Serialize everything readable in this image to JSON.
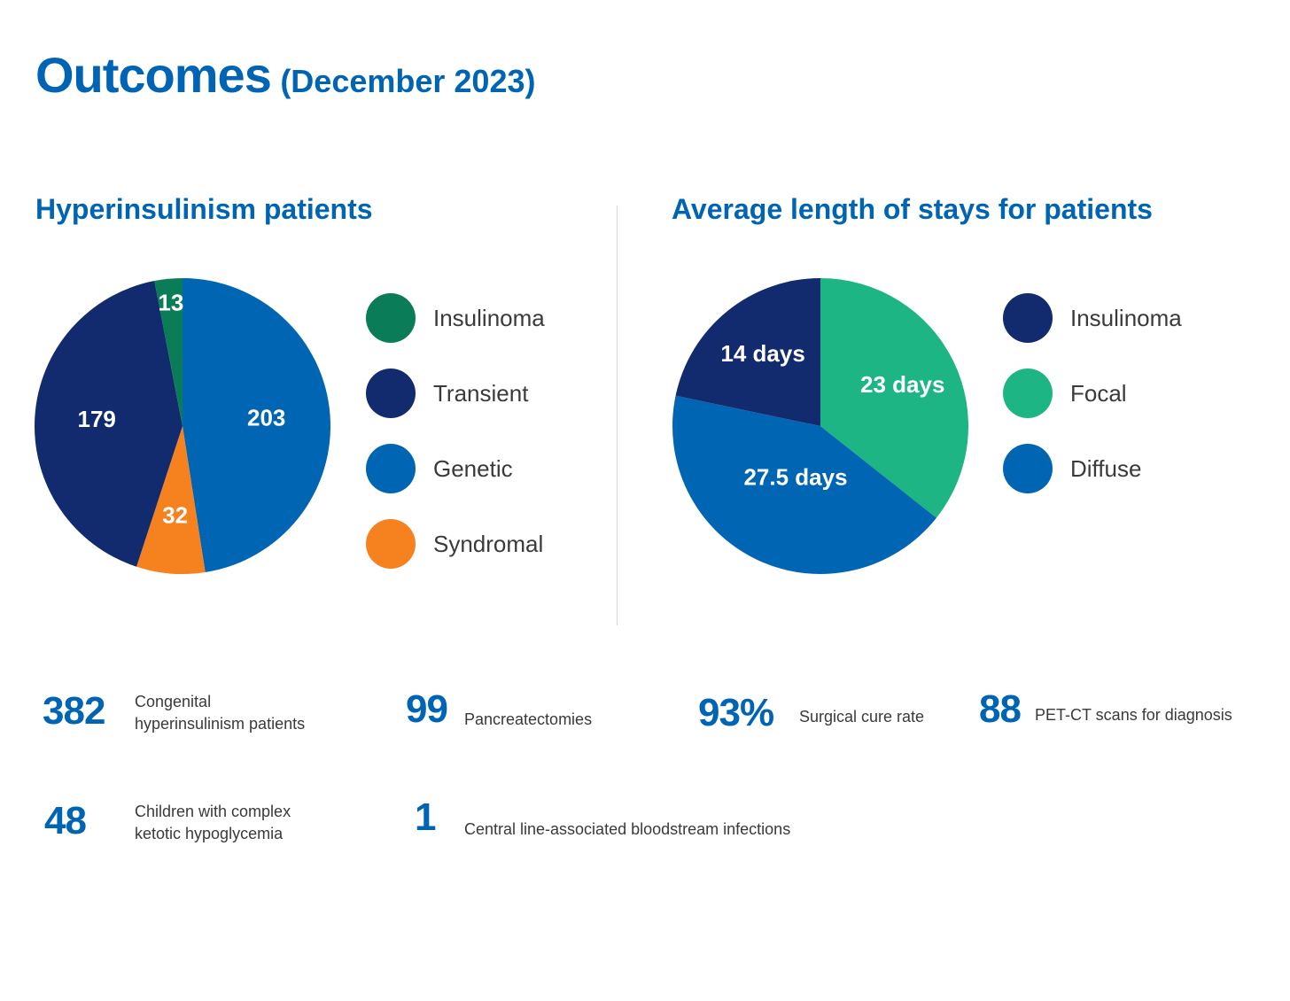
{
  "header": {
    "title": "Outcomes",
    "subtitle": "(December 2023)"
  },
  "chart_data": [
    {
      "type": "pie",
      "title": "Hyperinsulinism patients",
      "categories": [
        "Insulinoma",
        "Transient",
        "Genetic",
        "Syndromal"
      ],
      "values": [
        13,
        179,
        203,
        32
      ],
      "labels": [
        "13",
        "179",
        "203",
        "32"
      ],
      "colors": [
        "#0a7c57",
        "#122a6e",
        "#0066b3",
        "#f5821f"
      ],
      "legend_position": "right"
    },
    {
      "type": "pie",
      "title": "Average length of stays for patients",
      "categories": [
        "Insulinoma",
        "Focal",
        "Diffuse"
      ],
      "values": [
        14,
        23,
        27.5
      ],
      "labels": [
        "14 days",
        "23 days",
        "27.5 days"
      ],
      "colors": [
        "#122a6e",
        "#1db584",
        "#0066b3"
      ],
      "legend_position": "right"
    }
  ],
  "stats": [
    {
      "number": "382",
      "text_line1": "Congenital",
      "text_line2": "hyperinsulinism  patients"
    },
    {
      "number": "99",
      "text_line1": "Pancreatectomies",
      "text_line2": ""
    },
    {
      "number": "93%",
      "text_line1": "Surgical cure rate",
      "text_line2": ""
    },
    {
      "number": "88",
      "text_line1": "PET-CT scans for diagnosis",
      "text_line2": ""
    },
    {
      "number": "48",
      "text_line1": "Children with complex",
      "text_line2": "ketotic hypoglycemia"
    },
    {
      "number": "1",
      "text_line1": "Central line-associated bloodstream infections",
      "text_line2": ""
    }
  ]
}
